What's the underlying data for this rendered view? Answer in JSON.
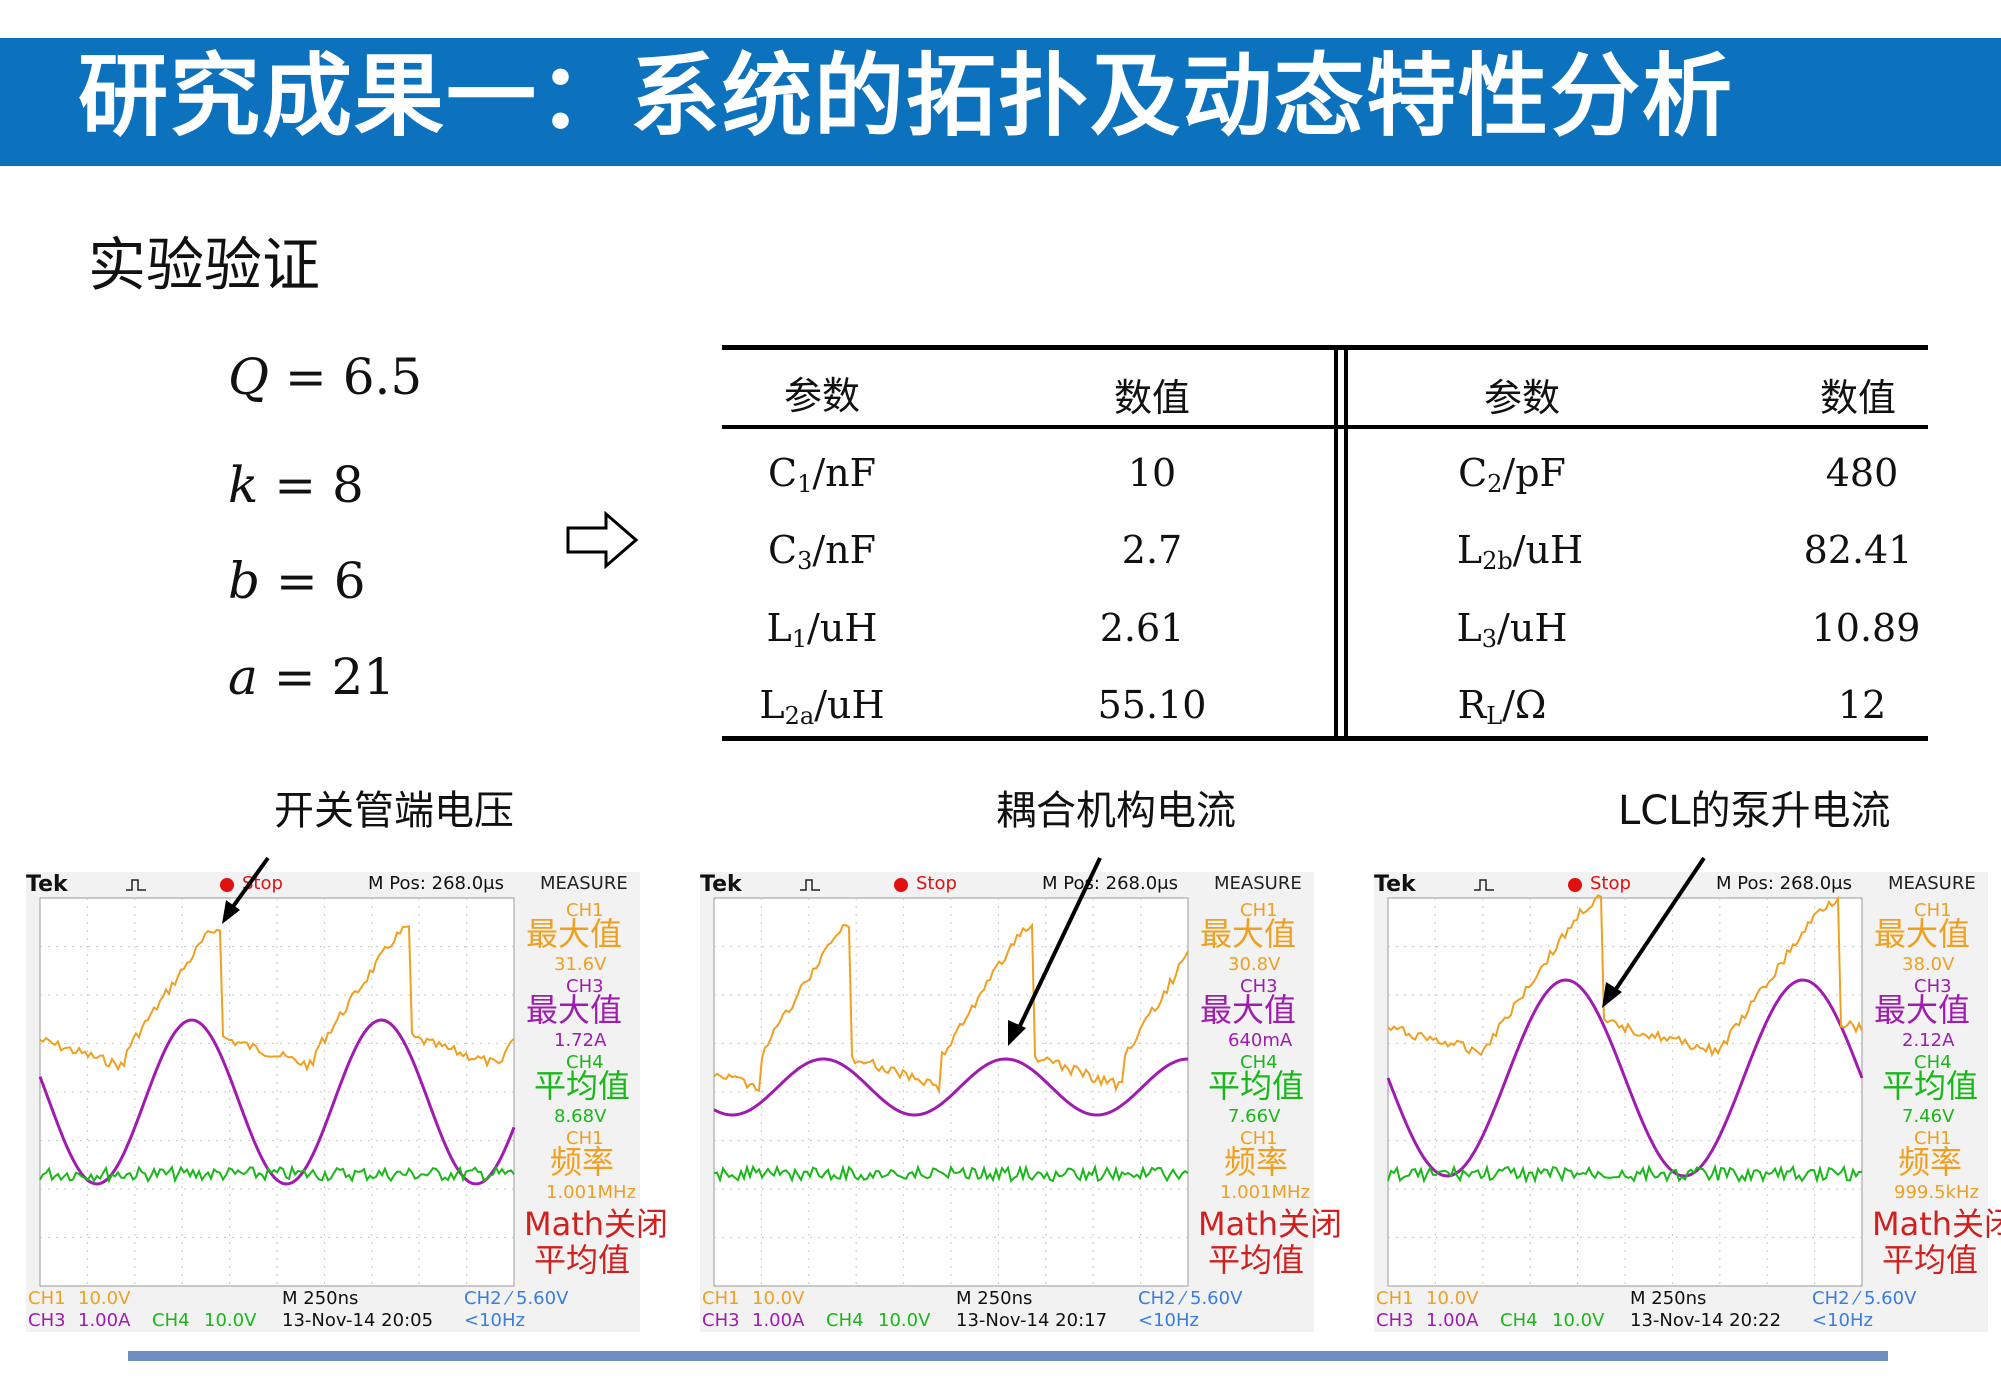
{
  "title": "研究成果一：系统的拓扑及动态特性分析",
  "subtitle": "实验验证",
  "equations": [
    {
      "var": "Q",
      "value": "6.5"
    },
    {
      "var": "k",
      "value": "8"
    },
    {
      "var": "b",
      "value": "6"
    },
    {
      "var": "a",
      "value": "21"
    }
  ],
  "table": {
    "headers": [
      "参数",
      "数值",
      "参数",
      "数值"
    ],
    "rows": [
      {
        "p1": "C",
        "s1": "1",
        "u1": "/nF",
        "v1": "10",
        "p2": "C",
        "s2": "2",
        "u2": "/pF",
        "v2": "480"
      },
      {
        "p1": "C",
        "s1": "3",
        "u1": "/nF",
        "v1": "2.7",
        "p2": "L",
        "s2": "2b",
        "u2": "/uH",
        "v2": "82.41"
      },
      {
        "p1": "L",
        "s1": "1",
        "u1": "/uH",
        "v1": "2.61",
        "p2": "L",
        "s2": "3",
        "u2": "/uH",
        "v2": "10.89"
      },
      {
        "p1": "L",
        "s1": "2a",
        "u1": "/uH",
        "v1": "55.10",
        "p2": "R",
        "s2": "L",
        "u2": "/Ω",
        "v2": "12"
      }
    ]
  },
  "captions": [
    "开关管端电压",
    "耦合机构电流",
    "LCL的泵升电流"
  ],
  "colors": {
    "title_bg": "#0d72bd",
    "ch1": "#f0a020",
    "ch3": "#a01cb0",
    "ch4": "#19b819",
    "math": "#d02020"
  },
  "scopes": [
    {
      "tek": "Tek",
      "trigger_icon": "pulse-icon",
      "status": "Stop",
      "mpos": "M Pos: 268.0μs",
      "measure": "MEASURE",
      "m1_ch": "CH1",
      "m1_label": "最大值",
      "m1_val": "31.6V",
      "m2_ch": "CH3",
      "m2_label": "最大值",
      "m2_val": "1.72A",
      "m3_ch": "CH4",
      "m3_label": "平均值",
      "m3_val": "8.68V",
      "m4_ch": "CH1",
      "m4_label": "频率",
      "m4_val": "1.001MHz",
      "m5_ch": "Math关闭",
      "m5_label": "平均值",
      "f_ch1": "CH1",
      "f_ch1v": "10.0V",
      "f_time": "M 250ns",
      "f_ch2": "CH2 ⁄ 5.60V",
      "f_ch3": "CH3",
      "f_ch3v": "1.00A",
      "f_ch4": "CH4",
      "f_ch4v": "10.0V",
      "f_date": "13-Nov-14 20:05",
      "f_freq": "<10Hz"
    },
    {
      "tek": "Tek",
      "trigger_icon": "pulse-icon",
      "status": "Stop",
      "mpos": "M Pos: 268.0μs",
      "measure": "MEASURE",
      "m1_ch": "CH1",
      "m1_label": "最大值",
      "m1_val": "30.8V",
      "m2_ch": "CH3",
      "m2_label": "最大值",
      "m2_val": "640mA",
      "m3_ch": "CH4",
      "m3_label": "平均值",
      "m3_val": "7.66V",
      "m4_ch": "CH1",
      "m4_label": "频率",
      "m4_val": "1.001MHz",
      "m5_ch": "Math关闭",
      "m5_label": "平均值",
      "f_ch1": "CH1",
      "f_ch1v": "10.0V",
      "f_time": "M 250ns",
      "f_ch2": "CH2 ⁄ 5.60V",
      "f_ch3": "CH3",
      "f_ch3v": "1.00A",
      "f_ch4": "CH4",
      "f_ch4v": "10.0V",
      "f_date": "13-Nov-14 20:17",
      "f_freq": "<10Hz"
    },
    {
      "tek": "Tek",
      "trigger_icon": "pulse-icon",
      "status": "Stop",
      "mpos": "M Pos: 268.0μs",
      "measure": "MEASURE",
      "m1_ch": "CH1",
      "m1_label": "最大值",
      "m1_val": "38.0V",
      "m2_ch": "CH3",
      "m2_label": "最大值",
      "m2_val": "2.12A",
      "m3_ch": "CH4",
      "m3_label": "平均值",
      "m3_val": "7.46V",
      "m4_ch": "CH1",
      "m4_label": "频率",
      "m4_val": "999.5kHz",
      "m5_ch": "Math关闭",
      "m5_label": "平均值",
      "f_ch1": "CH1",
      "f_ch1v": "10.0V",
      "f_time": "M 250ns",
      "f_ch2": "CH2 ⁄ 5.60V",
      "f_ch3": "CH3",
      "f_ch3v": "1.00A",
      "f_ch4": "CH4",
      "f_ch4v": "10.0V",
      "f_date": "13-Nov-14 20:22",
      "f_freq": "<10Hz"
    }
  ]
}
